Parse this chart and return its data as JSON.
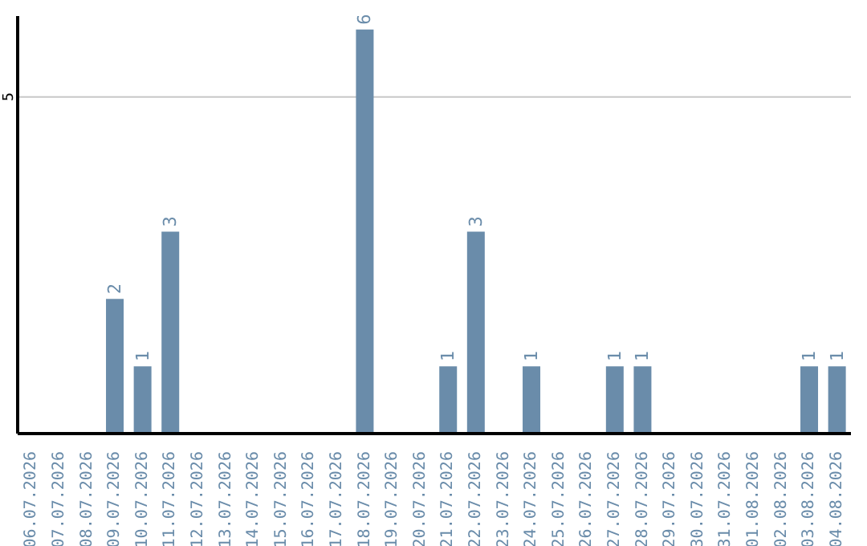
{
  "chart_data": {
    "type": "bar",
    "categories": [
      "06.07.2026",
      "07.07.2026",
      "08.07.2026",
      "09.07.2026",
      "10.07.2026",
      "11.07.2026",
      "12.07.2026",
      "13.07.2026",
      "14.07.2026",
      "15.07.2026",
      "16.07.2026",
      "17.07.2026",
      "18.07.2026",
      "19.07.2026",
      "20.07.2026",
      "21.07.2026",
      "22.07.2026",
      "23.07.2026",
      "24.07.2026",
      "25.07.2026",
      "26.07.2026",
      "27.07.2026",
      "28.07.2026",
      "29.07.2026",
      "30.07.2026",
      "31.07.2026",
      "01.08.2026",
      "02.08.2026",
      "03.08.2026",
      "04.08.2026"
    ],
    "values": [
      0,
      0,
      0,
      2,
      1,
      3,
      0,
      0,
      0,
      0,
      0,
      0,
      6,
      0,
      0,
      1,
      3,
      0,
      1,
      0,
      0,
      1,
      1,
      0,
      0,
      0,
      0,
      0,
      1,
      1
    ],
    "value_labels": [
      null,
      null,
      null,
      "2",
      "1",
      "3",
      null,
      null,
      null,
      null,
      null,
      null,
      "6",
      null,
      null,
      "1",
      "3",
      null,
      "1",
      null,
      null,
      "1",
      "1",
      null,
      null,
      null,
      null,
      null,
      "1",
      "1"
    ],
    "color": "#6a8caa",
    "ylim": [
      0,
      6.2
    ],
    "yticks": [
      5
    ],
    "grid": "y"
  }
}
